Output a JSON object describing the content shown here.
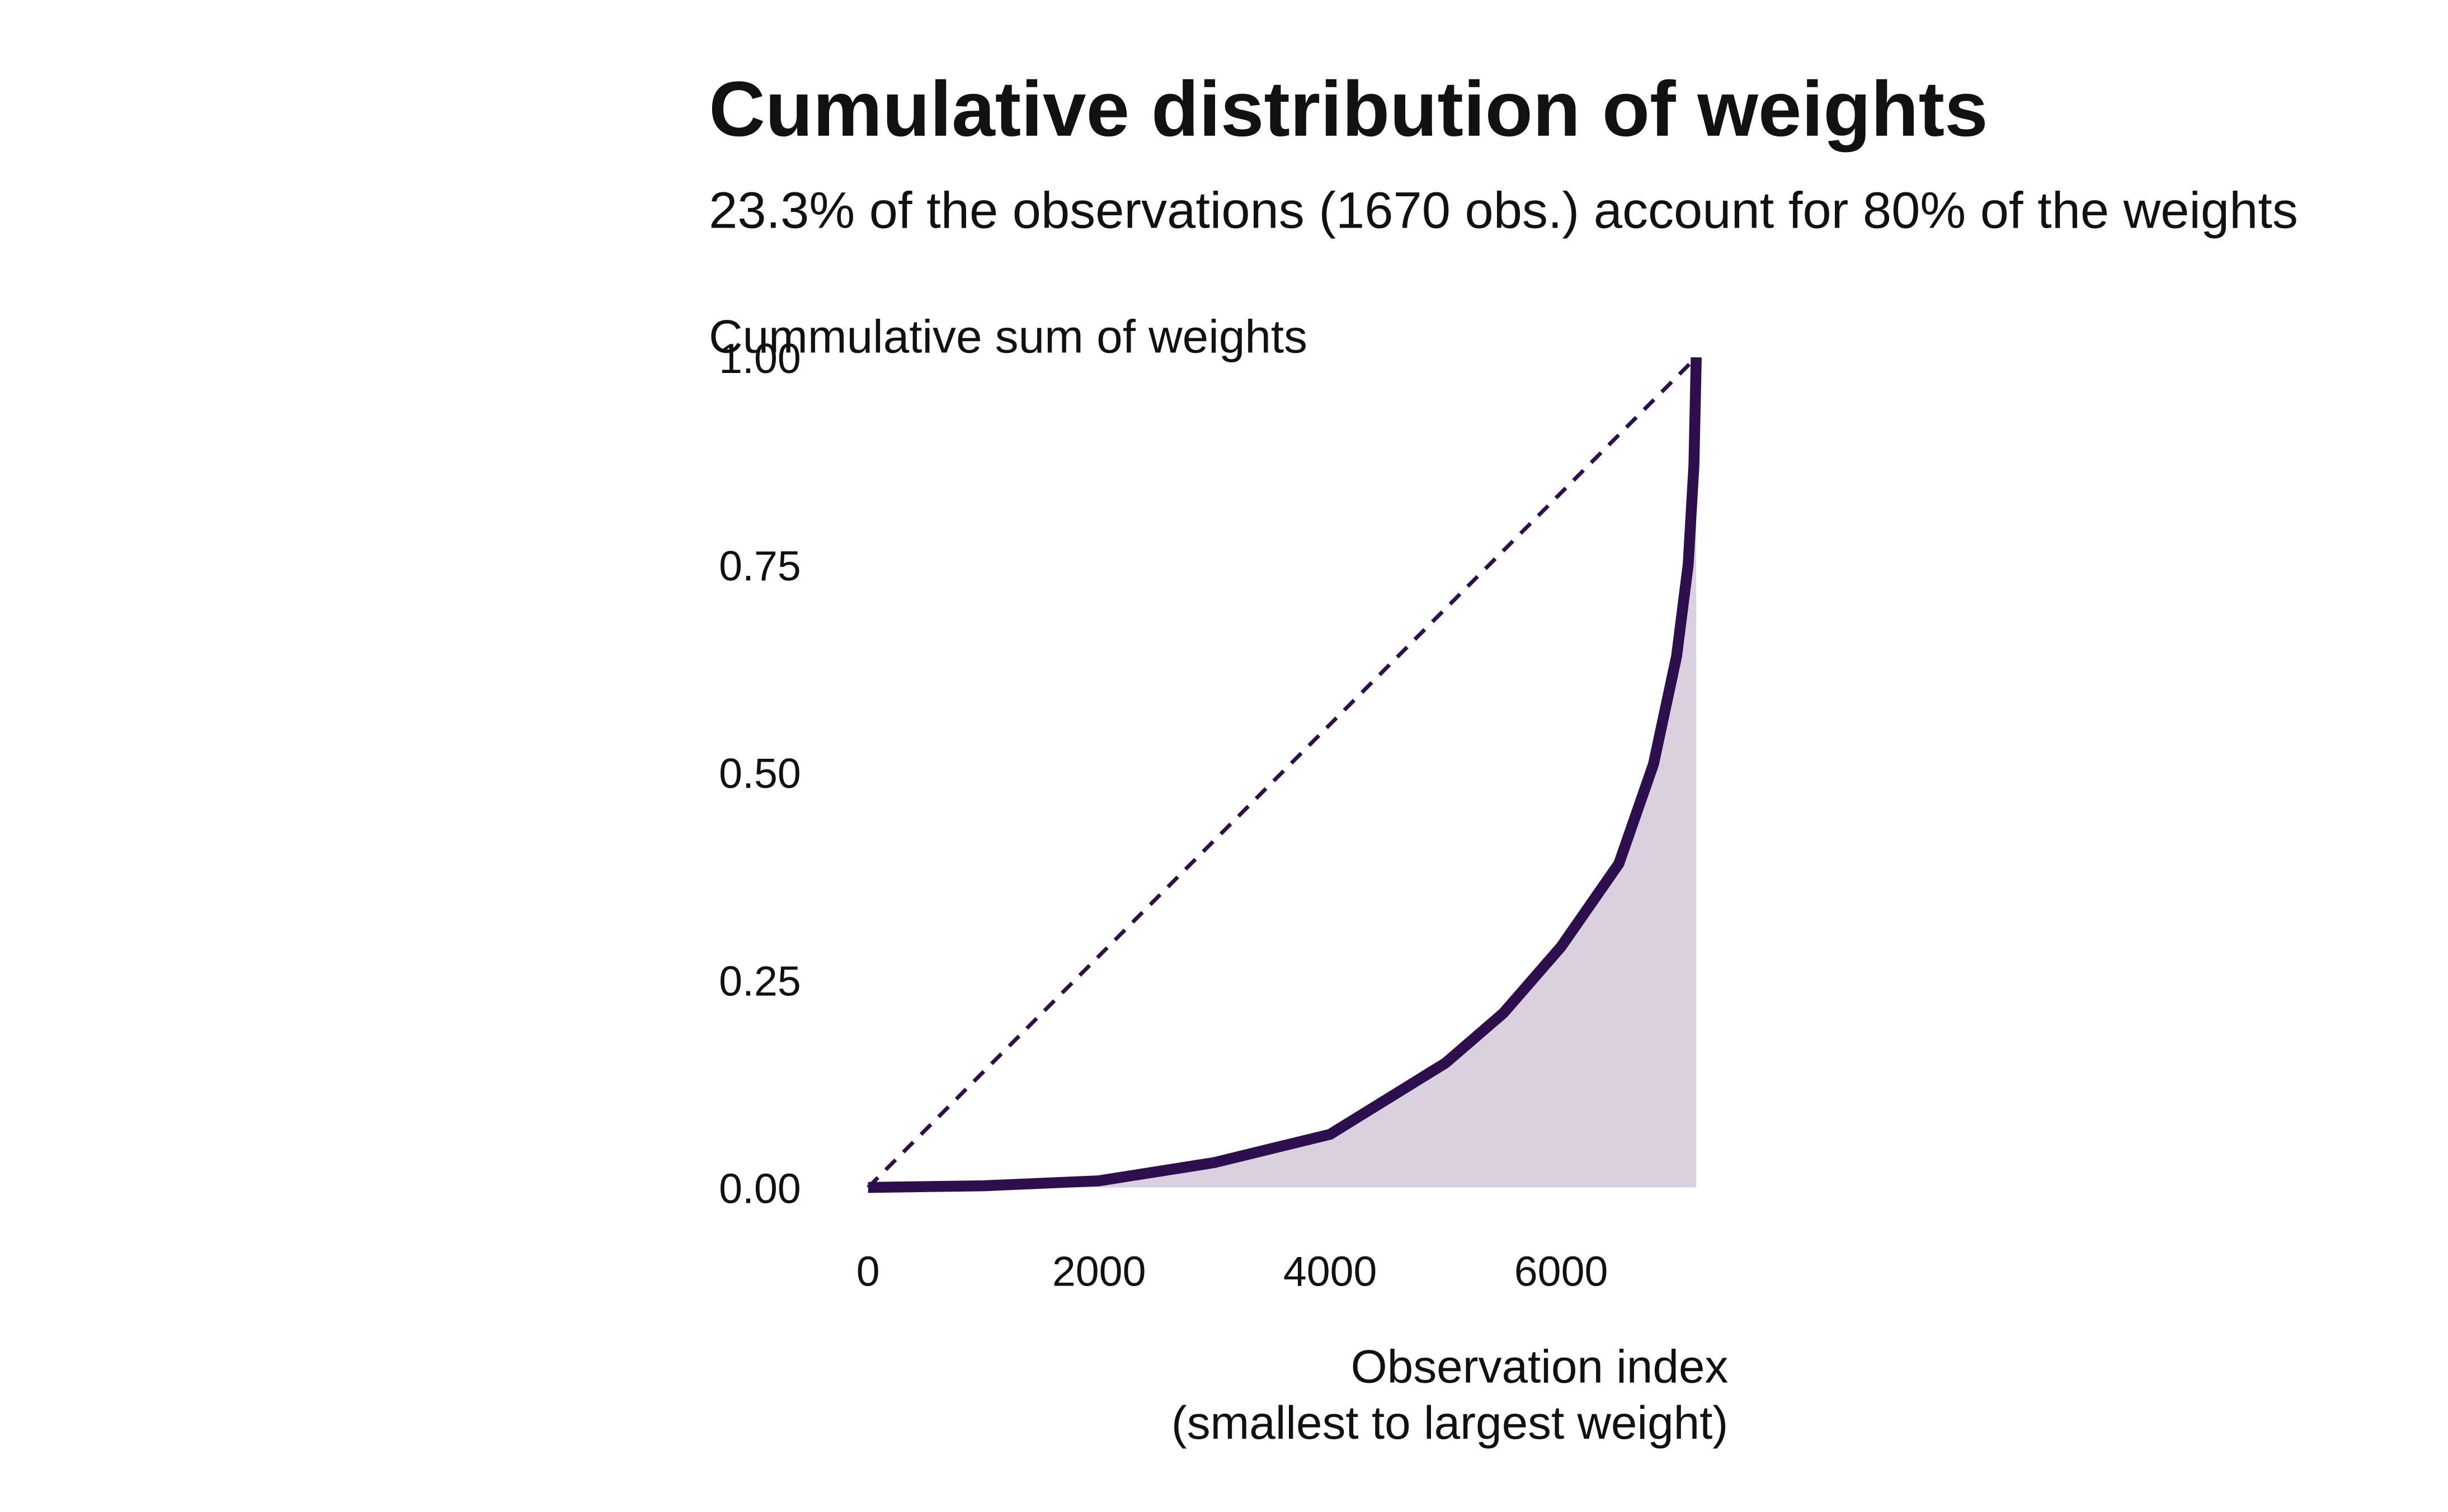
{
  "chart_data": {
    "type": "line",
    "title": "Cumulative distribution of weights",
    "subtitle": "23.3% of the observations (1670 obs.) account for 80% of the weights",
    "y_label": "Cummulative sum of weights",
    "x_label": [
      "Observation index",
      "(smallest to largest weight)"
    ],
    "x": [
      0,
      1000,
      2000,
      3000,
      4000,
      5000,
      5500,
      6000,
      6500,
      6800,
      7000,
      7100,
      7150,
      7170
    ],
    "series": [
      {
        "color": "#2d0f4e",
        "fill": "#d9d0e0",
        "values": [
          0,
          0.002,
          0.008,
          0.03,
          0.064,
          0.15,
          0.21,
          0.29,
          0.39,
          0.51,
          0.64,
          0.75,
          0.87,
          1.0
        ]
      }
    ],
    "reference_line": {
      "x": [
        0,
        7170
      ],
      "values": [
        0,
        1
      ],
      "color": "#2d0f4e",
      "dashed": true
    },
    "xlim": [
      -358,
      7528
    ],
    "ylim": [
      -0.05,
      1.05
    ],
    "xticks": [
      0,
      2000,
      4000,
      6000
    ],
    "yticks": [
      {
        "value": 0,
        "label": "0.00"
      },
      {
        "value": 0.25,
        "label": "0.25"
      },
      {
        "value": 0.5,
        "label": "0.50"
      },
      {
        "value": 0.75,
        "label": "0.75"
      },
      {
        "value": 1,
        "label": "1.00"
      }
    ],
    "grid": false
  }
}
